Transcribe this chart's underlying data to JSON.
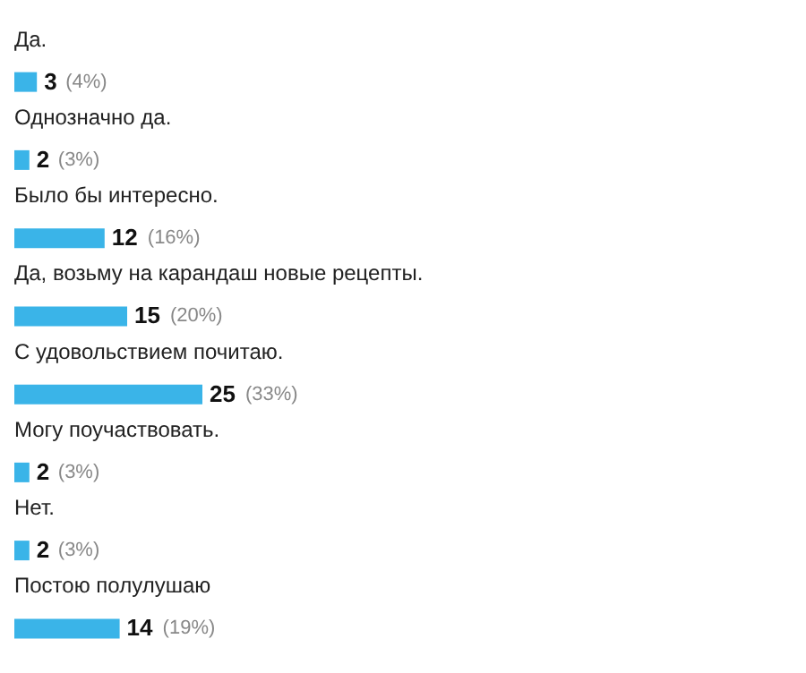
{
  "chart_data": {
    "type": "bar",
    "orientation": "horizontal",
    "color": "#3ab4e8",
    "categories": [
      "Да.",
      "Однозначно да.",
      "Было бы интересно.",
      "Да, возьму на карандаш новые рецепты.",
      "С удовольствием почитаю.",
      "Могу поучаствовать.",
      "Нет.",
      "Постою полулушаю"
    ],
    "values": [
      3,
      2,
      12,
      15,
      25,
      2,
      2,
      14
    ],
    "data_labels": true,
    "annotations": [
      {
        "text": "(4%)",
        "x": 3,
        "y": "Да."
      },
      {
        "text": "(3%)",
        "x": 2,
        "y": "Однозначно да."
      },
      {
        "text": "(16%)",
        "x": 12,
        "y": "Было бы интересно."
      },
      {
        "text": "(20%)",
        "x": 15,
        "y": "Да, возьму на карандаш новые рецепты."
      },
      {
        "text": "(33%)",
        "x": 25,
        "y": "С удовольствием почитаю."
      },
      {
        "text": "(3%)",
        "x": 2,
        "y": "Могу поучаствовать."
      },
      {
        "text": "(3%)",
        "x": 2,
        "y": "Нет."
      },
      {
        "text": "(19%)",
        "x": 14,
        "y": "Постою полулушаю"
      }
    ]
  }
}
